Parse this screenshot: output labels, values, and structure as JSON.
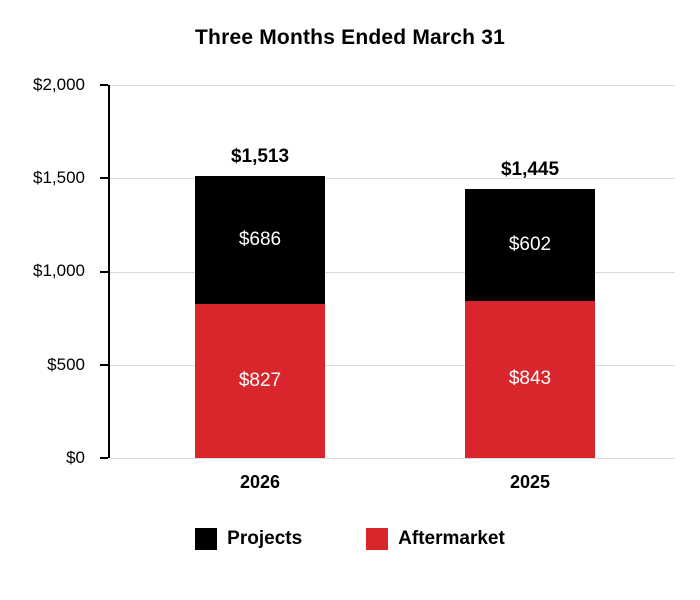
{
  "title": "Three Months Ended March 31",
  "colors": {
    "projects": "#000000",
    "aftermarket": "#d8262c",
    "gridline": "#d9d9d9"
  },
  "y_axis": {
    "ticks": [
      "$2,000",
      "$1,500",
      "$1,000",
      "$500",
      "$0"
    ],
    "max": 2000
  },
  "legend": [
    {
      "label": "Projects",
      "color": "#000000"
    },
    {
      "label": "Aftermarket",
      "color": "#d8262c"
    }
  ],
  "bars": [
    {
      "category": "2026",
      "total_label": "$1,513",
      "projects_label": "$686",
      "aftermarket_label": "$827"
    },
    {
      "category": "2025",
      "total_label": "$1,445",
      "projects_label": "$602",
      "aftermarket_label": "$843"
    }
  ],
  "chart_data": {
    "type": "bar",
    "stacked": true,
    "title": "Three Months Ended March 31",
    "categories": [
      "2026",
      "2025"
    ],
    "series": [
      {
        "name": "Projects",
        "color": "#000000",
        "values": [
          686,
          602
        ]
      },
      {
        "name": "Aftermarket",
        "color": "#d8262c",
        "values": [
          827,
          843
        ]
      }
    ],
    "totals": [
      1513,
      1445
    ],
    "xlabel": "",
    "ylabel": "",
    "ylim": [
      0,
      2000
    ],
    "ytick_interval": 500,
    "grid": true,
    "legend_position": "bottom",
    "value_prefix": "$"
  }
}
